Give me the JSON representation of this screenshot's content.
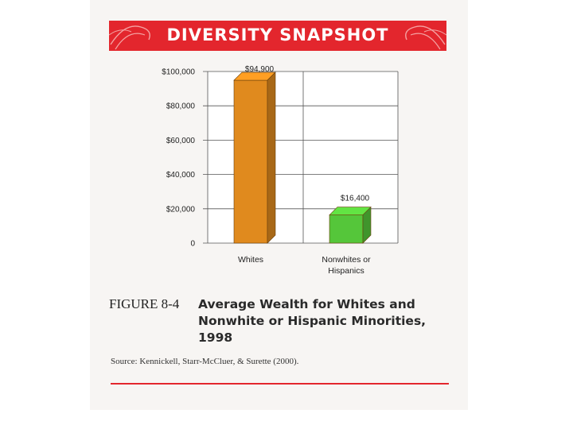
{
  "banner": {
    "title": "DIVERSITY SNAPSHOT",
    "color": "#e3262d"
  },
  "chart_data": {
    "type": "bar",
    "categories": [
      "Whites",
      "Nonwhites or Hispanics"
    ],
    "category_lines": [
      [
        "Whites"
      ],
      [
        "Nonwhites or",
        "Hispanics"
      ]
    ],
    "values": [
      94900,
      16400
    ],
    "value_labels": [
      "$94,900",
      "$16,400"
    ],
    "bar_colors": [
      "#e08a1e",
      "#55c63a"
    ],
    "ylim": [
      0,
      100000
    ],
    "yticks": [
      0,
      20000,
      40000,
      60000,
      80000,
      100000
    ],
    "ytick_labels": [
      "0",
      "$20,000",
      "$40,000",
      "$60,000",
      "$80,000",
      "$100,000"
    ],
    "grid": true,
    "title": "",
    "xlabel": "",
    "ylabel": ""
  },
  "caption": {
    "figure_number": "FIGURE 8-4",
    "title": "Average Wealth for Whites and Nonwhite or Hispanic Minorities, 1998",
    "source": "Source: Kennickell, Starr-McCluer, & Surette (2000)."
  }
}
